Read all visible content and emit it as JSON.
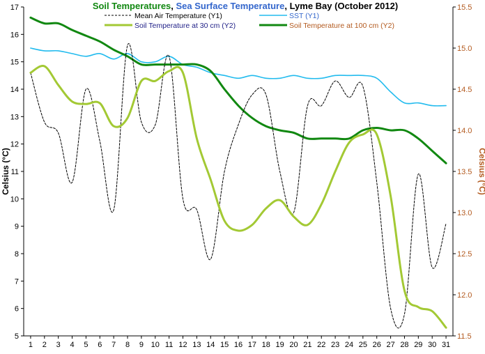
{
  "chart_data": {
    "type": "line",
    "title_parts": [
      {
        "text": "Soil Temperatures",
        "color": "#118811"
      },
      {
        "text": ", ",
        "color": "#000000"
      },
      {
        "text": "Sea Surface Temperature",
        "color": "#3366cc"
      },
      {
        "text": ", Lyme Bay (October 2012)",
        "color": "#000000"
      }
    ],
    "ylabel": "Celsius (°C)",
    "y2label": "Celsius (°C)",
    "ylabel_color": "#000000",
    "y2label_color": "#b35a1f",
    "x": [
      1,
      2,
      3,
      4,
      5,
      6,
      7,
      8,
      9,
      10,
      11,
      12,
      13,
      14,
      15,
      16,
      17,
      18,
      19,
      20,
      21,
      22,
      23,
      24,
      25,
      26,
      27,
      28,
      29,
      30,
      31
    ],
    "xlim": [
      0.5,
      31.5
    ],
    "ylim": [
      5,
      17
    ],
    "y2lim": [
      11.5,
      15.5
    ],
    "yticks": [
      5,
      6,
      7,
      8,
      9,
      10,
      11,
      12,
      13,
      14,
      15,
      16,
      17
    ],
    "y2ticks": [
      "11.5",
      "12.0",
      "12.5",
      "13.0",
      "13.5",
      "14.0",
      "14.5",
      "15.0",
      "15.5"
    ],
    "grid": false,
    "legend_position": "top",
    "series": [
      {
        "name": "Mean Air Temperature (Y1)",
        "axis": "y1",
        "color": "#000000",
        "style": "dashed",
        "legend_color": "#000000",
        "values": [
          14.6,
          12.8,
          12.4,
          10.6,
          14.0,
          12.1,
          9.6,
          15.6,
          12.8,
          12.7,
          15.2,
          10.0,
          9.6,
          7.8,
          11.0,
          12.7,
          13.8,
          13.8,
          11.0,
          9.5,
          13.4,
          13.4,
          14.3,
          13.7,
          14.1,
          10.6,
          6.0,
          5.8,
          10.9,
          7.5,
          9.1
        ]
      },
      {
        "name": "SST (Y1)",
        "axis": "y1",
        "color": "#22bbee",
        "style": "solid",
        "legend_color": "#3366cc",
        "values": [
          15.5,
          15.4,
          15.4,
          15.3,
          15.2,
          15.3,
          15.1,
          15.3,
          15.0,
          15.0,
          15.2,
          14.9,
          14.8,
          14.6,
          14.5,
          14.4,
          14.5,
          14.4,
          14.4,
          14.5,
          14.4,
          14.4,
          14.5,
          14.5,
          14.5,
          14.4,
          13.9,
          13.5,
          13.5,
          13.4,
          13.4
        ]
      },
      {
        "name": "Soil Temperature at 30 cm (Y2)",
        "axis": "y2",
        "color": "#a3c934",
        "style": "solid",
        "legend_color": "#222288",
        "values": [
          14.7,
          14.78,
          14.55,
          14.35,
          14.32,
          14.33,
          14.05,
          14.15,
          14.6,
          14.6,
          14.72,
          14.7,
          13.9,
          13.4,
          12.9,
          12.78,
          12.85,
          13.05,
          13.15,
          12.95,
          12.85,
          13.1,
          13.5,
          13.85,
          13.95,
          13.95,
          13.2,
          12.05,
          11.85,
          11.8,
          11.6
        ]
      },
      {
        "name": "Soil Temperature at 100 cm (Y2)",
        "axis": "y2",
        "color": "#118811",
        "style": "solid",
        "legend_color": "#b35a1f",
        "values": [
          15.37,
          15.3,
          15.3,
          15.22,
          15.15,
          15.08,
          14.98,
          14.9,
          14.8,
          14.8,
          14.8,
          14.8,
          14.8,
          14.72,
          14.5,
          14.3,
          14.15,
          14.05,
          14.0,
          13.97,
          13.9,
          13.9,
          13.9,
          13.9,
          14.0,
          14.03,
          14.0,
          14.0,
          13.9,
          13.75,
          13.6
        ]
      }
    ]
  }
}
